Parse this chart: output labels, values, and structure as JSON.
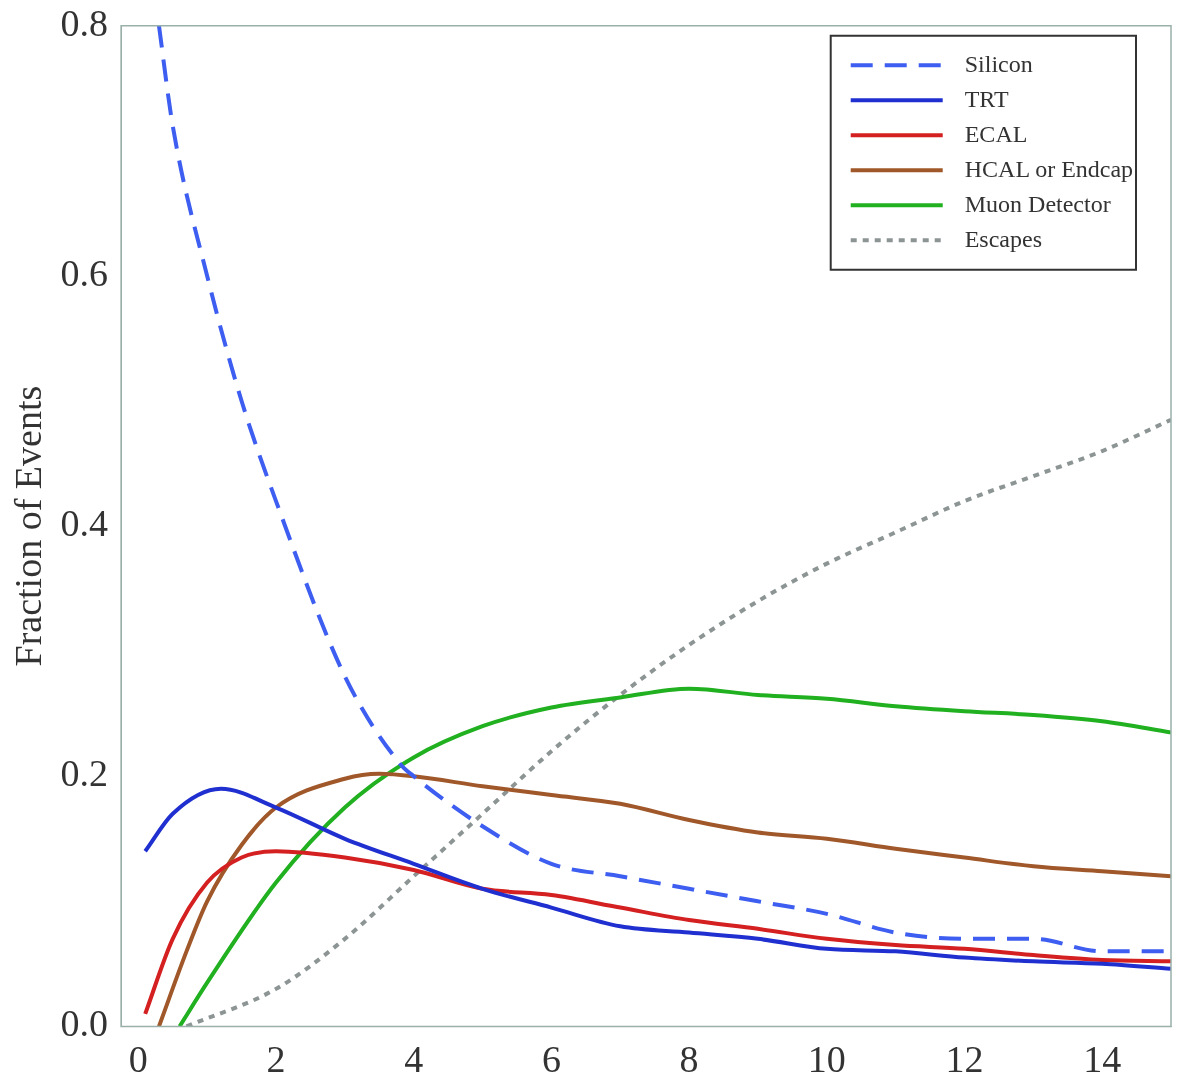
{
  "chart_data": {
    "type": "line",
    "ylabel": "Fraction of Events",
    "xlim": [
      -0.25,
      15
    ],
    "ylim": [
      0,
      0.8
    ],
    "xticks": [
      0,
      2,
      4,
      6,
      8,
      10,
      12,
      14
    ],
    "yticks": [
      {
        "value": 0,
        "label": "0.0"
      },
      0.2,
      0.4,
      0.6,
      0.8
    ],
    "grid": false,
    "legend": "top right",
    "marker": "none",
    "series": [
      {
        "name": "Silicon",
        "color": "#3d5ef0",
        "line_style": "dashed",
        "x": [
          0.3,
          0.5,
          1,
          1.5,
          2,
          3,
          3.8,
          4,
          5,
          6,
          7,
          8,
          9,
          10,
          11,
          12,
          13,
          14,
          15
        ],
        "values": [
          0.8,
          0.72,
          0.6,
          0.5,
          0.42,
          0.28,
          0.21,
          0.2,
          0.16,
          0.13,
          0.12,
          0.11,
          0.1,
          0.09,
          0.075,
          0.07,
          0.07,
          0.06,
          0.06
        ]
      },
      {
        "name": "TRT",
        "color": "#2030d0",
        "line_style": "solid",
        "x": [
          0.1,
          0.5,
          1.2,
          2,
          3,
          4,
          5,
          6,
          7,
          8,
          9,
          10,
          11,
          12,
          13,
          14,
          15
        ],
        "values": [
          0.14,
          0.17,
          0.19,
          0.175,
          0.15,
          0.13,
          0.11,
          0.095,
          0.08,
          0.075,
          0.07,
          0.062,
          0.06,
          0.055,
          0.052,
          0.05,
          0.046
        ]
      },
      {
        "name": "ECAL",
        "color": "#d42020",
        "line_style": "solid",
        "x": [
          0.1,
          0.5,
          1,
          1.5,
          2,
          3,
          4,
          5,
          6,
          7,
          8,
          9,
          10,
          11,
          12,
          13,
          14,
          15
        ],
        "values": [
          0.01,
          0.07,
          0.115,
          0.135,
          0.14,
          0.135,
          0.125,
          0.11,
          0.105,
          0.095,
          0.085,
          0.078,
          0.07,
          0.065,
          0.062,
          0.057,
          0.053,
          0.052
        ]
      },
      {
        "name": "HCAL or Endcap",
        "color": "#a0582a",
        "line_style": "solid",
        "x": [
          0.3,
          0.7,
          1,
          1.5,
          2,
          3,
          3.5,
          4,
          5,
          6,
          7,
          8,
          9,
          10,
          11,
          12,
          13,
          14,
          15
        ],
        "values": [
          0,
          0.06,
          0.1,
          0.145,
          0.175,
          0.198,
          0.202,
          0.2,
          0.192,
          0.185,
          0.178,
          0.165,
          0.155,
          0.15,
          0.142,
          0.135,
          0.128,
          0.124,
          0.12
        ]
      },
      {
        "name": "Muon Detector",
        "color": "#20b020",
        "line_style": "solid",
        "x": [
          0.6,
          1,
          2,
          3,
          4,
          5,
          6,
          7,
          8,
          9,
          10,
          11,
          12,
          13,
          14,
          15
        ],
        "values": [
          0,
          0.035,
          0.115,
          0.175,
          0.215,
          0.24,
          0.255,
          0.263,
          0.27,
          0.265,
          0.262,
          0.256,
          0.252,
          0.249,
          0.244,
          0.235
        ]
      },
      {
        "name": "Escapes",
        "color": "#8c9494",
        "line_style": "dotted",
        "x": [
          0.7,
          2,
          3,
          4,
          5,
          6,
          7,
          8,
          9,
          10,
          11,
          12,
          13,
          14,
          15
        ],
        "values": [
          0,
          0.03,
          0.07,
          0.12,
          0.17,
          0.22,
          0.265,
          0.305,
          0.34,
          0.37,
          0.395,
          0.42,
          0.44,
          0.46,
          0.485
        ]
      }
    ]
  }
}
